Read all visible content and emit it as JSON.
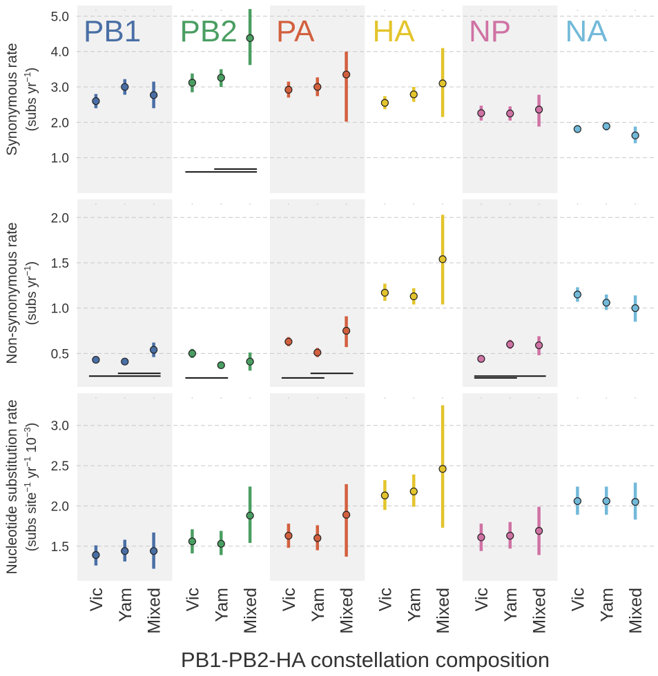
{
  "chart_data": {
    "type": "scatter",
    "subtype": "point-range small multiples",
    "xlabel": "PB1-PB2-HA constellation composition",
    "categories": [
      "Vic",
      "Yam",
      "Mixed"
    ],
    "segments": [
      {
        "name": "PB1",
        "color": "#4a6fa5",
        "shaded": true
      },
      {
        "name": "PB2",
        "color": "#4a9e62",
        "shaded": false
      },
      {
        "name": "PA",
        "color": "#d2603f",
        "shaded": true
      },
      {
        "name": "HA",
        "color": "#e3c42c",
        "shaded": false
      },
      {
        "name": "NP",
        "color": "#cf72a4",
        "shaded": true
      },
      {
        "name": "NA",
        "color": "#72b9d9",
        "shaded": false
      }
    ],
    "rows": [
      {
        "id": "synonymous",
        "ylabel_line1": "Synonymous rate",
        "ylabel_line2": "(subs yr",
        "ylabel_sup": "−1",
        "ylabel_tail": ")",
        "ylim": [
          0.0,
          5.3
        ],
        "ticks": [
          1.0,
          2.0,
          3.0,
          4.0,
          5.0
        ],
        "tick_labels": [
          "1.0",
          "2.0",
          "3.0",
          "4.0",
          "5.0"
        ],
        "series": [
          {
            "segment": "PB1",
            "values": [
              2.6,
              3.0,
              2.77
            ],
            "lower": [
              2.4,
              2.78,
              2.4
            ],
            "upper": [
              2.8,
              3.22,
              3.15
            ]
          },
          {
            "segment": "PB2",
            "values": [
              3.12,
              3.26,
              4.38
            ],
            "lower": [
              2.85,
              3.0,
              3.62
            ],
            "upper": [
              3.38,
              3.5,
              5.2
            ]
          },
          {
            "segment": "PA",
            "values": [
              2.92,
              3.0,
              3.35
            ],
            "lower": [
              2.7,
              2.74,
              2.02
            ],
            "upper": [
              3.15,
              3.27,
              4.0
            ]
          },
          {
            "segment": "HA",
            "values": [
              2.55,
              2.79,
              3.1
            ],
            "lower": [
              2.37,
              2.58,
              2.15
            ],
            "upper": [
              2.74,
              3.0,
              4.1
            ]
          },
          {
            "segment": "NP",
            "values": [
              2.26,
              2.25,
              2.36
            ],
            "lower": [
              2.05,
              2.05,
              1.88
            ],
            "upper": [
              2.47,
              2.45,
              2.78
            ]
          },
          {
            "segment": "NA",
            "values": [
              1.81,
              1.89,
              1.63
            ],
            "lower": [
              1.71,
              1.77,
              1.41
            ],
            "upper": [
              1.92,
              2.0,
              1.88
            ]
          }
        ],
        "comparison_bars": [
          {
            "segment": "PB2",
            "from": 0,
            "to": 2,
            "y": 0.6
          },
          {
            "segment": "PB2",
            "from": 1,
            "to": 2,
            "y": 0.68
          }
        ]
      },
      {
        "id": "nonsynonymous",
        "ylabel_line1": "Non-synonymous rate",
        "ylabel_line2": "(subs yr",
        "ylabel_sup": "−1",
        "ylabel_tail": ")",
        "ylim": [
          0.13,
          2.2
        ],
        "ticks": [
          0.5,
          1.0,
          1.5,
          2.0
        ],
        "tick_labels": [
          "0.5",
          "1.0",
          "1.5",
          "2.0"
        ],
        "series": [
          {
            "segment": "PB1",
            "values": [
              0.43,
              0.41,
              0.54
            ],
            "lower": [
              0.4,
              0.38,
              0.46
            ],
            "upper": [
              0.46,
              0.44,
              0.62
            ]
          },
          {
            "segment": "PB2",
            "values": [
              0.5,
              0.37,
              0.41
            ],
            "lower": [
              0.45,
              0.35,
              0.31
            ],
            "upper": [
              0.55,
              0.39,
              0.51
            ]
          },
          {
            "segment": "PA",
            "values": [
              0.63,
              0.51,
              0.75
            ],
            "lower": [
              0.58,
              0.46,
              0.57
            ],
            "upper": [
              0.68,
              0.56,
              0.91
            ]
          },
          {
            "segment": "HA",
            "values": [
              1.17,
              1.13,
              1.54
            ],
            "lower": [
              1.08,
              1.04,
              1.04
            ],
            "upper": [
              1.27,
              1.22,
              2.03
            ]
          },
          {
            "segment": "NP",
            "values": [
              0.44,
              0.6,
              0.59
            ],
            "lower": [
              0.4,
              0.55,
              0.48
            ],
            "upper": [
              0.48,
              0.65,
              0.69
            ]
          },
          {
            "segment": "NA",
            "values": [
              1.15,
              1.06,
              1.0
            ],
            "lower": [
              1.07,
              0.98,
              0.85
            ],
            "upper": [
              1.23,
              1.15,
              1.14
            ]
          }
        ],
        "comparison_bars": [
          {
            "segment": "PB1",
            "from": 0,
            "to": 2,
            "y": 0.25
          },
          {
            "segment": "PB1",
            "from": 1,
            "to": 2,
            "y": 0.28
          },
          {
            "segment": "PB2",
            "from": 0,
            "to": 1,
            "y": 0.23
          },
          {
            "segment": "PA",
            "from": 0,
            "to": 1,
            "y": 0.23
          },
          {
            "segment": "PA",
            "from": 1,
            "to": 2,
            "y": 0.28
          },
          {
            "segment": "NP",
            "from": 0,
            "to": 2,
            "y": 0.25
          },
          {
            "segment": "NP",
            "from": 0,
            "to": 1,
            "y": 0.23
          }
        ]
      },
      {
        "id": "nucleotide",
        "ylabel_line1": "Nucleotide substitution rate",
        "ylabel_line2": "(subs site",
        "ylabel_sup": "−1",
        "ylabel_mid": " yr",
        "ylabel_sup2": "−1",
        "ylabel_mid2": " 10",
        "ylabel_sup3": "−3",
        "ylabel_tail": ")",
        "ylim": [
          1.07,
          3.4
        ],
        "ticks": [
          1.5,
          2.0,
          2.5,
          3.0
        ],
        "tick_labels": [
          "1.5",
          "2.0",
          "2.5",
          "3.0"
        ],
        "series": [
          {
            "segment": "PB1",
            "values": [
              1.39,
              1.44,
              1.44
            ],
            "lower": [
              1.26,
              1.31,
              1.22
            ],
            "upper": [
              1.51,
              1.58,
              1.67
            ]
          },
          {
            "segment": "PB2",
            "values": [
              1.56,
              1.53,
              1.88
            ],
            "lower": [
              1.41,
              1.39,
              1.54
            ],
            "upper": [
              1.71,
              1.69,
              2.24
            ]
          },
          {
            "segment": "PA",
            "values": [
              1.63,
              1.6,
              1.89
            ],
            "lower": [
              1.48,
              1.45,
              1.37
            ],
            "upper": [
              1.78,
              1.76,
              2.27
            ]
          },
          {
            "segment": "HA",
            "values": [
              2.13,
              2.18,
              2.46
            ],
            "lower": [
              1.95,
              1.99,
              1.73
            ],
            "upper": [
              2.32,
              2.39,
              3.25
            ]
          },
          {
            "segment": "NP",
            "values": [
              1.61,
              1.63,
              1.69
            ],
            "lower": [
              1.44,
              1.47,
              1.39
            ],
            "upper": [
              1.78,
              1.8,
              1.99
            ]
          },
          {
            "segment": "NA",
            "values": [
              2.06,
              2.06,
              2.05
            ],
            "lower": [
              1.89,
              1.89,
              1.83
            ],
            "upper": [
              2.24,
              2.24,
              2.29
            ]
          }
        ],
        "comparison_bars": []
      }
    ]
  }
}
